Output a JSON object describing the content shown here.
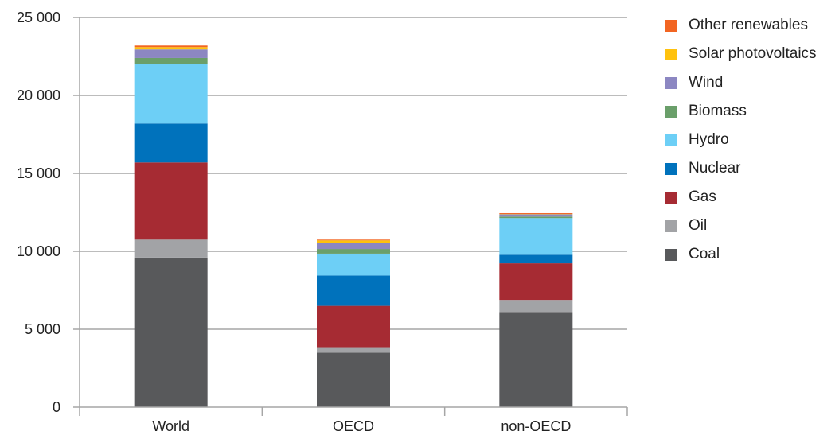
{
  "chart_data": {
    "type": "bar",
    "stacked": true,
    "title": "",
    "xlabel": "",
    "ylabel": "",
    "categories": [
      "World",
      "OECD",
      "non-OECD"
    ],
    "ylim": [
      0,
      25000
    ],
    "yticks": [
      0,
      5000,
      10000,
      15000,
      20000,
      25000
    ],
    "ytick_labels": [
      "0",
      "5 000",
      "10 000",
      "15 000",
      "20 000",
      "25 000"
    ],
    "grid": true,
    "legend_position": "right",
    "series": [
      {
        "name": "Coal",
        "color": "#58595b",
        "values": [
          9600,
          3500,
          6100
        ]
      },
      {
        "name": "Oil",
        "color": "#a2a3a6",
        "values": [
          1150,
          350,
          780
        ]
      },
      {
        "name": "Gas",
        "color": "#a62b33",
        "values": [
          4950,
          2650,
          2350
        ]
      },
      {
        "name": "Nuclear",
        "color": "#0072bc",
        "values": [
          2500,
          1950,
          550
        ]
      },
      {
        "name": "Hydro",
        "color": "#6dcff6",
        "values": [
          3800,
          1400,
          2350
        ]
      },
      {
        "name": "Biomass",
        "color": "#6a9f6a",
        "values": [
          400,
          300,
          100
        ]
      },
      {
        "name": "Wind",
        "color": "#8c87c2",
        "values": [
          550,
          400,
          150
        ]
      },
      {
        "name": "Solar photovoltaics",
        "color": "#ffc20e",
        "values": [
          150,
          150,
          20
        ]
      },
      {
        "name": "Other renewables",
        "color": "#f26522",
        "values": [
          100,
          50,
          50
        ]
      }
    ]
  }
}
